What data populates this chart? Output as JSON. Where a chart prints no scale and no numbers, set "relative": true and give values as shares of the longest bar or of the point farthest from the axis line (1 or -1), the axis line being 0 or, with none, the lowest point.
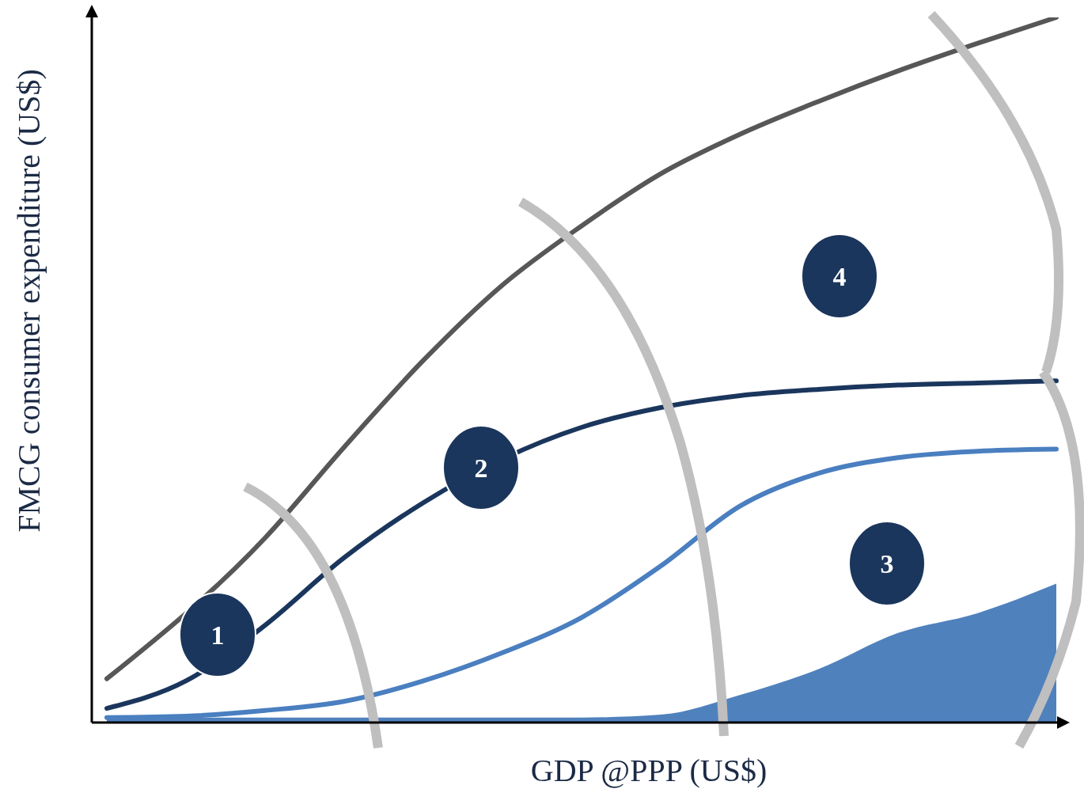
{
  "chart_data": {
    "type": "line",
    "relative": true,
    "xlabel": "GDP @PPP (US$)",
    "ylabel": "FMCG consumer expenditure (US$)",
    "categories": [
      null,
      null,
      null,
      null,
      null,
      null,
      null,
      null,
      null,
      null,
      null,
      null,
      null
    ],
    "series": [
      {
        "color": "#575757",
        "values": [
          0.061,
          null,
          0.261,
          0.39,
          0.513,
          0.62,
          0.704,
          0.778,
          0.834,
          0.881,
          0.924,
          0.963,
          1
        ]
      },
      {
        "color": "#1b365d",
        "values": [
          0.019,
          0.058,
          0.137,
          0.233,
          0.311,
          null,
          0.418,
          0.446,
          0.463,
          0.472,
          0.478,
          0.481,
          0.484
        ]
      },
      {
        "color": "#4a7fc0",
        "values": [
          0.006,
          0.008,
          0.016,
          0.029,
          0.058,
          0.098,
          0.148,
          0.221,
          0.306,
          0.353,
          0.375,
          0.384,
          0.387
        ]
      },
      {
        "type": "area",
        "color": "#4f81bd",
        "values": [
          0.007,
          0.006,
          0.006,
          0.006,
          0.006,
          0.006,
          0.006,
          0.01,
          0.038,
          0.075,
          0.126,
          0.154,
          0.196
        ]
      }
    ],
    "annotations": [
      "1",
      "2",
      "3",
      "4"
    ]
  }
}
